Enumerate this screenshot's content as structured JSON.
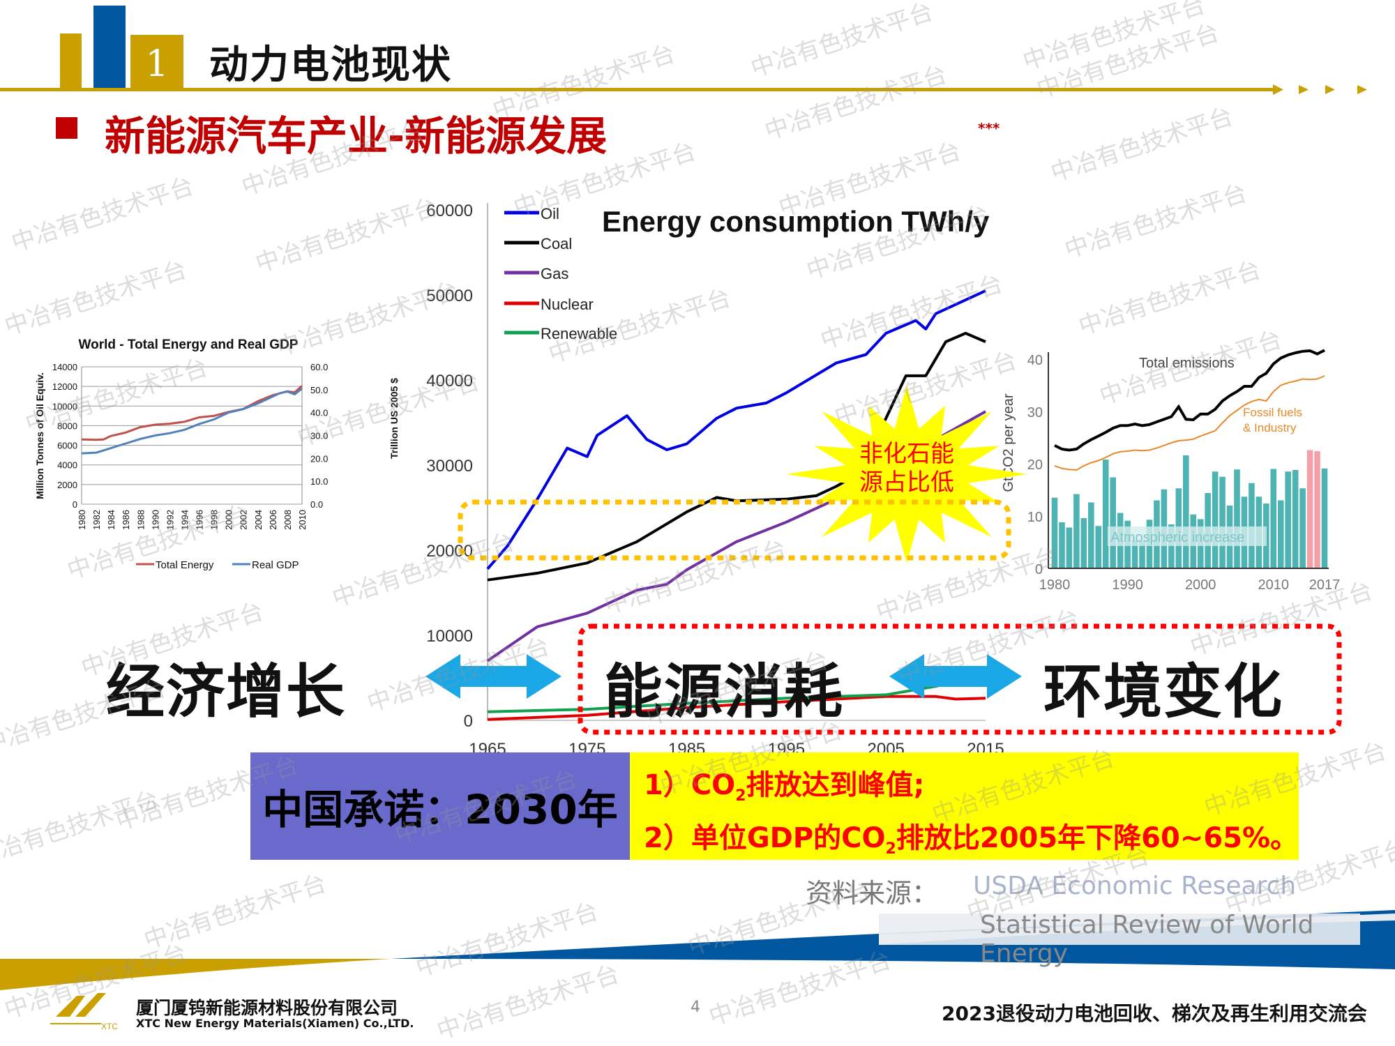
{
  "header": {
    "section_number": "1",
    "title": "动力电池现状",
    "subtitle": "新能源汽车产业-新能源发展",
    "marker": "***"
  },
  "colors": {
    "gold": "#c9a000",
    "blue": "#0057a0",
    "red": "#c00000",
    "purple_box": "#6a6acd",
    "yellow_box": "#ffff00",
    "arrow": "#1aa7e6",
    "highlight_border": "#ffc000"
  },
  "chart_data": [
    {
      "type": "line",
      "title": "World - Total Energy and Real GDP",
      "ylabel": "Million Tonnes of Oil Equiv.",
      "y2label": "Trillion US 2005 $",
      "ylim": [
        0,
        14000
      ],
      "y2lim": [
        0,
        60
      ],
      "yticks": [
        "0",
        "2000",
        "4000",
        "6000",
        "8000",
        "10000",
        "12000",
        "14000"
      ],
      "y2ticks": [
        "0.0",
        "10.0",
        "20.0",
        "30.0",
        "40.0",
        "50.0",
        "60.0"
      ],
      "xticks": [
        "1980",
        "1982",
        "1984",
        "1986",
        "1988",
        "1990",
        "1992",
        "1994",
        "1996",
        "1998",
        "2000",
        "2002",
        "2004",
        "2006",
        "2008",
        "2010"
      ],
      "grid": true,
      "legend": "bottom",
      "series": [
        {
          "name": "Total Energy",
          "color": "#c0504d",
          "axis": "left",
          "x": [
            1980,
            1982,
            1983,
            1984,
            1986,
            1988,
            1990,
            1992,
            1994,
            1996,
            1998,
            2000,
            2002,
            2004,
            2006,
            2008,
            2009,
            2010
          ],
          "y": [
            6600,
            6550,
            6600,
            6950,
            7300,
            7850,
            8100,
            8200,
            8400,
            8850,
            9000,
            9400,
            9700,
            10500,
            11100,
            11500,
            11400,
            12050
          ]
        },
        {
          "name": "Real GDP",
          "color": "#4f81bd",
          "axis": "right",
          "x": [
            1980,
            1982,
            1984,
            1986,
            1988,
            1990,
            1992,
            1994,
            1996,
            1998,
            2000,
            2002,
            2004,
            2006,
            2007,
            2008,
            2009,
            2010
          ],
          "y": [
            22.2,
            22.5,
            24.5,
            26.5,
            28.5,
            30,
            31,
            32.5,
            35,
            37,
            40,
            41.5,
            44,
            47,
            48.5,
            49.2,
            48,
            50.5
          ]
        }
      ]
    },
    {
      "type": "line",
      "title": "Energy consumption TWh/y",
      "ylim": [
        0,
        60000
      ],
      "xlim": [
        1965,
        2015
      ],
      "yticks": [
        "0",
        "10000",
        "20000",
        "30000",
        "40000",
        "50000",
        "60000"
      ],
      "xticks": [
        "1965",
        "1975",
        "1985",
        "1995",
        "2005",
        "2015"
      ],
      "legend": "top-left",
      "series": [
        {
          "name": "Oil",
          "color": "#0000e0",
          "x": [
            1965,
            1967,
            1970,
            1973,
            1975,
            1976,
            1979,
            1981,
            1983,
            1985,
            1988,
            1990,
            1993,
            1995,
            2000,
            2003,
            2005,
            2008,
            2009,
            2010,
            2015
          ],
          "y": [
            17800,
            20500,
            26000,
            32000,
            31000,
            33500,
            35800,
            33000,
            31800,
            32500,
            35500,
            36700,
            37300,
            38500,
            42000,
            43000,
            45500,
            47000,
            46000,
            47800,
            50500
          ]
        },
        {
          "name": "Coal",
          "color": "#000000",
          "x": [
            1965,
            1970,
            1975,
            1980,
            1985,
            1988,
            1990,
            1995,
            1998,
            2000,
            2002,
            2005,
            2007,
            2009,
            2011,
            2013,
            2015
          ],
          "y": [
            16500,
            17300,
            18500,
            21000,
            24500,
            26200,
            25800,
            26000,
            26400,
            27500,
            28800,
            35500,
            40500,
            40500,
            44500,
            45500,
            44500
          ]
        },
        {
          "name": "Gas",
          "color": "#7030a0",
          "x": [
            1965,
            1970,
            1975,
            1980,
            1983,
            1985,
            1990,
            1995,
            2000,
            2005,
            2008,
            2009,
            2010,
            2015
          ],
          "y": [
            7000,
            11000,
            12600,
            15300,
            16000,
            17700,
            21000,
            23300,
            26000,
            29500,
            32000,
            31000,
            33000,
            36300
          ]
        },
        {
          "name": "Nuclear",
          "color": "#e00000",
          "x": [
            1965,
            1975,
            1985,
            1995,
            2005,
            2010,
            2012,
            2015
          ],
          "y": [
            100,
            600,
            1500,
            2200,
            2800,
            2800,
            2500,
            2600
          ]
        },
        {
          "name": "Renewable",
          "color": "#10a050",
          "x": [
            1965,
            1975,
            1985,
            1995,
            2005,
            2010,
            2015
          ],
          "y": [
            1000,
            1300,
            2000,
            2600,
            3000,
            4000,
            5500
          ]
        }
      ]
    },
    {
      "type": "bar",
      "ylabel": "GtCO2 per year",
      "ylim": [
        0,
        40
      ],
      "yticks": [
        "0",
        "10",
        "20",
        "30",
        "40"
      ],
      "xticks": [
        "1980",
        "1990",
        "2000",
        "2010",
        "2017"
      ],
      "x": [
        1980,
        1981,
        1982,
        1983,
        1984,
        1985,
        1986,
        1987,
        1988,
        1989,
        1990,
        1991,
        1992,
        1993,
        1994,
        1995,
        1996,
        1997,
        1998,
        1999,
        2000,
        2001,
        2002,
        2003,
        2004,
        2005,
        2006,
        2007,
        2008,
        2009,
        2010,
        2011,
        2012,
        2013,
        2014,
        2015,
        2016,
        2017
      ],
      "bars": {
        "name": "Atmospheric increase",
        "color": "#4db3b3",
        "highlight_color": "#f4a0a8",
        "highlighted": [
          2015,
          2016
        ],
        "values": [
          13.5,
          8.8,
          7.8,
          14.2,
          9.6,
          12.6,
          8.1,
          20.8,
          17.4,
          10.6,
          9.1,
          5.4,
          5.3,
          9.3,
          13,
          15.1,
          8.4,
          15.3,
          21.6,
          10.3,
          9.4,
          14.4,
          18.5,
          17.5,
          12,
          18.9,
          13.7,
          16.3,
          13.7,
          12.4,
          19,
          13,
          18.5,
          18.8,
          15.3,
          22.6,
          22.4,
          19.1
        ]
      },
      "series": [
        {
          "name": "Total emissions",
          "color": "#000000",
          "values": [
            23.5,
            22.8,
            22.6,
            22.8,
            23.8,
            24.6,
            25.3,
            26,
            26.8,
            27.3,
            27.3,
            27.6,
            27.3,
            27.5,
            28,
            28.5,
            29,
            30.9,
            28.5,
            28.4,
            29.5,
            29.5,
            30.4,
            32,
            33,
            33.8,
            34.8,
            34.8,
            36.5,
            37.3,
            39.1,
            40.2,
            40.8,
            41.2,
            41.5,
            41.6,
            41,
            41.7
          ]
        },
        {
          "name": "Fossil fuels & Industry",
          "line1": "Fossil fuels",
          "line2": "& Industry",
          "color": "#e8892a",
          "values": [
            19.6,
            19.1,
            18.9,
            18.8,
            19.6,
            20.2,
            20.6,
            21.2,
            21.9,
            22.3,
            22.4,
            22.6,
            22.5,
            22.6,
            23,
            23.5,
            24,
            24.4,
            24.5,
            24.7,
            25.3,
            25.8,
            26.3,
            27.8,
            29.2,
            30.2,
            31.2,
            31.9,
            32.3,
            32,
            33.8,
            35,
            35.5,
            35.8,
            36.2,
            36.1,
            36.2,
            36.8
          ]
        }
      ]
    }
  ],
  "callout": {
    "line1": "非化石能",
    "line2": "源占比低"
  },
  "relation": {
    "economy": "经济增长",
    "energy": "能源消耗",
    "environment": "环境变化"
  },
  "promise": {
    "label": "中国承诺：2030年",
    "goal1_prefix": "1）CO",
    "goal1_sub": "2",
    "goal1_suffix": "排放达到峰值;",
    "goal2_prefix": "2）单位GDP的CO",
    "goal2_sub": "2",
    "goal2_suffix": "排放比2005年下降60~65%。"
  },
  "sources": {
    "label": "资料来源：",
    "source1": "USDA Economic Research",
    "source2": "Statistical Review of World Energy"
  },
  "footer": {
    "company_cn": "厦门厦钨新能源材料股份有限公司",
    "company_en": "XTC New Energy Materials(Xiamen) Co.,LTD.",
    "logo_text": "XTC",
    "page": "4",
    "event": "2023退役动力电池回收、梯次及再生利用交流会"
  },
  "watermark": "中冶有色技术平台"
}
